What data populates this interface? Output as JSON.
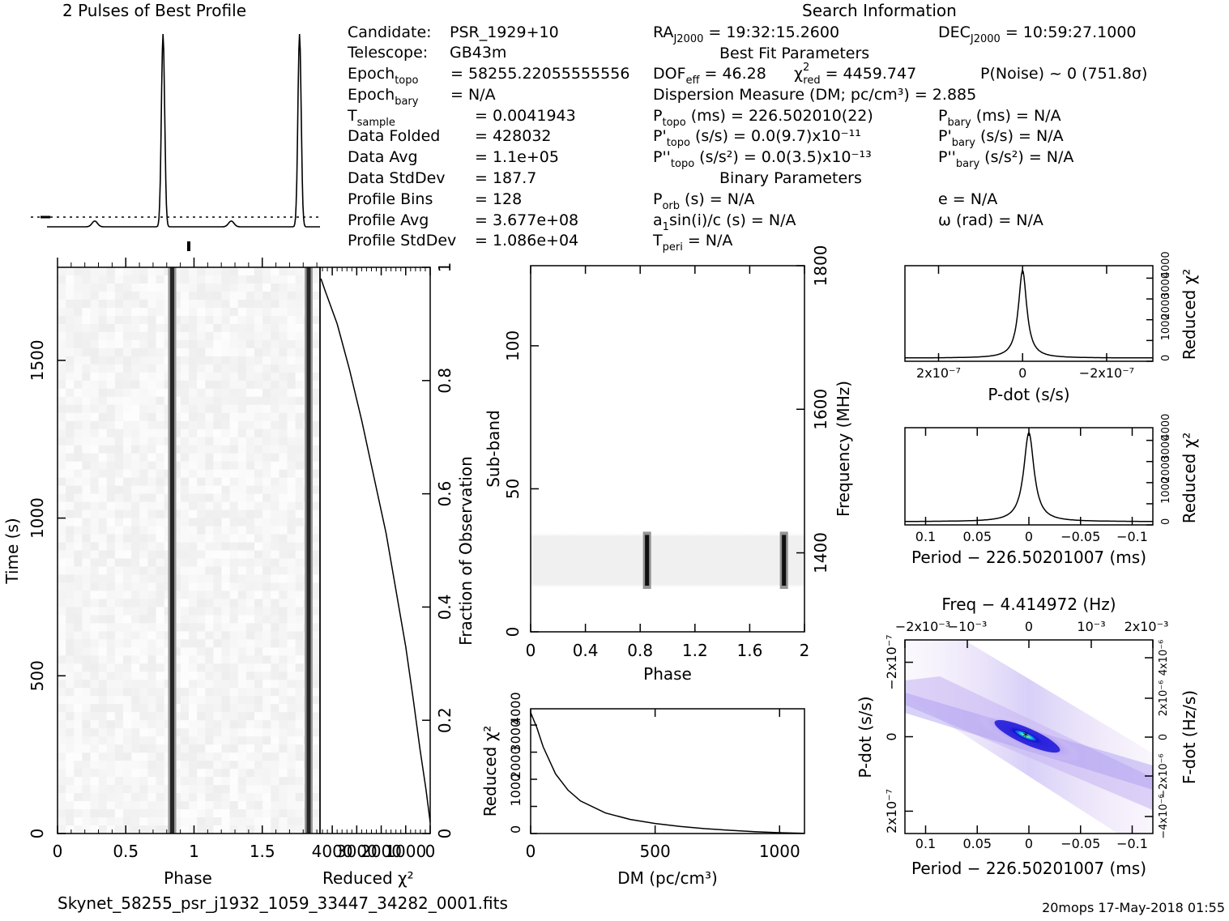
{
  "header": {
    "profile_title": "2 Pulses of Best Profile",
    "search_title": "Search Information",
    "best_fit_title": "Best Fit Parameters",
    "binary_title": "Binary Parameters"
  },
  "info_left": [
    {
      "label": "Candidate:",
      "value": "PSR_1929+10"
    },
    {
      "label": "Telescope:",
      "value": "GB43m"
    },
    {
      "label": "Epoch",
      "sub": "topo",
      "value": "= 58255.22055555556"
    },
    {
      "label": "Epoch",
      "sub": "bary",
      "value": "= N/A"
    },
    {
      "label": "T",
      "sub": "sample",
      "value": "=   0.0041943"
    },
    {
      "label": "Data Folded",
      "value": "=   428032"
    },
    {
      "label": "Data Avg",
      "value": "=   1.1e+05"
    },
    {
      "label": "Data StdDev",
      "value": "=   187.7"
    },
    {
      "label": "Profile Bins",
      "value": "=   128"
    },
    {
      "label": "Profile Avg",
      "value": "=   3.677e+08"
    },
    {
      "label": "Profile StdDev",
      "value": "=   1.086e+04"
    }
  ],
  "search_info": {
    "ra": "RA",
    "ra_sub": "J2000",
    "ra_val": "= 19:32:15.2600",
    "dec": "DEC",
    "dec_sub": "J2000",
    "dec_val": "= 10:59:27.1000",
    "dof": "DOF",
    "dof_sub": "eff",
    "dof_val": "= 46.28",
    "chi": "χ",
    "chi_sup": "2",
    "chi_sub": "red",
    "chi_val": "= 4459.747",
    "pnoise": "P(Noise) ~ 0    (751.8σ)",
    "dm_line": "Dispersion Measure (DM; pc/cm³) = 2.885",
    "ptopo": "P",
    "ptopo_sub": "topo",
    "ptopo_val": "(ms) =  226.502010(22)",
    "pbary": "P",
    "pbary_sub": "bary",
    "pbary_val": "(ms) = N/A",
    "pdtopo": "P'",
    "pdtopo_sub": "topo",
    "pdtopo_val": "(s/s) = 0.0(9.7)x10⁻¹¹",
    "pdbary": "P'",
    "pdbary_sub": "bary",
    "pdbary_val": "(s/s) = N/A",
    "pddtopo": "P''",
    "pddtopo_sub": "topo",
    "pddtopo_val": "(s/s²) = 0.0(3.5)x10⁻¹³",
    "pddbary": "P''",
    "pddbary_sub": "bary",
    "pddbary_val": "(s/s²) = N/A",
    "porb": "P",
    "porb_sub": "orb",
    "porb_val": "(s) = N/A",
    "ecc": "e = N/A",
    "a1": "a",
    "a1_sub": "1",
    "a1_val": "sin(i)/c (s) = N/A",
    "omega": "ω (rad) = N/A",
    "tperi": "T",
    "tperi_sub": "peri",
    "tperi_val": "= N/A"
  },
  "footer": {
    "filename": "Skynet_58255_psr_j1932_1059_33447_34282_0001.fits",
    "stamp": "20mops 17-May-2018 01:55"
  },
  "chart_data": [
    {
      "id": "profile",
      "type": "line",
      "title": "2 Pulses of Best Profile",
      "phase_peaks": [
        0.85,
        1.85
      ],
      "peak_width": 0.012,
      "xlim": [
        0,
        2
      ]
    },
    {
      "id": "time_phase",
      "type": "heatmap",
      "xlabel": "Phase",
      "ylabel": "Time (s)",
      "xlim": [
        0,
        2
      ],
      "ylim": [
        0,
        1795
      ],
      "x_ticks": [
        "0",
        "0.5",
        "1",
        "1.5"
      ],
      "x_tick_values": [
        0,
        0.5,
        1,
        1.5
      ],
      "y_ticks": [
        "0",
        "500",
        "1000",
        "1500"
      ],
      "y_tick_values": [
        0,
        500,
        1000,
        1500
      ],
      "pulse_phases": [
        0.84,
        1.84
      ]
    },
    {
      "id": "reduced_chi_vs_time",
      "type": "line",
      "xlabel": "Reduced χ²",
      "ylabel": "Fraction of Observation",
      "x_ticks": [
        "4000",
        "3000",
        "2000",
        "1000",
        "0"
      ],
      "x_tick_values": [
        4000,
        3000,
        2000,
        1000,
        0
      ],
      "xlim": [
        4500,
        0
      ],
      "ylim": [
        0,
        1
      ],
      "y_ticks": [
        "0",
        "0.2",
        "0.4",
        "0.6",
        "0.8",
        "1"
      ],
      "y_tick_values": [
        0,
        0.2,
        0.4,
        0.6,
        0.8,
        1
      ],
      "x": [
        0,
        180,
        420,
        700,
        1000,
        1400,
        1800,
        2300,
        2800,
        3300,
        3800,
        4300,
        4460
      ],
      "y": [
        0.02,
        0.08,
        0.15,
        0.24,
        0.33,
        0.43,
        0.53,
        0.63,
        0.73,
        0.82,
        0.9,
        0.96,
        0.98
      ]
    },
    {
      "id": "subband_phase",
      "type": "heatmap",
      "xlabel": "Phase",
      "ylabel": "Sub-band",
      "y2label": "Frequency (MHz)",
      "xlim": [
        0,
        2
      ],
      "ylim": [
        0,
        128
      ],
      "x_ticks": [
        "0",
        "0.4",
        "0.8",
        "1.2",
        "1.6",
        "2"
      ],
      "x_tick_values": [
        0,
        0.4,
        0.8,
        1.2,
        1.6,
        2
      ],
      "y_ticks": [
        "0",
        "50",
        "100"
      ],
      "y_tick_values": [
        0,
        50,
        100
      ],
      "y2_ticks": [
        "1400",
        "1600",
        "1800"
      ],
      "y2_tick_values": [
        1400,
        1600,
        1800
      ],
      "y2lim": [
        1290,
        1800
      ],
      "band_range": [
        15,
        35
      ],
      "pulse_phases": [
        0.85,
        1.85
      ]
    },
    {
      "id": "dm_chi",
      "type": "line",
      "xlabel": "DM (pc/cm³)",
      "ylabel": "Reduced χ²",
      "xlim": [
        0,
        1100
      ],
      "x_ticks": [
        "0",
        "500",
        "1000"
      ],
      "x_tick_values": [
        0,
        500,
        1000
      ],
      "y_ticks": [
        "0",
        "1000",
        "2000",
        "3000",
        "4000"
      ],
      "y_tick_values": [
        0,
        1000,
        2000,
        3000,
        4000
      ],
      "ylim": [
        0,
        4600
      ],
      "x": [
        0,
        25,
        50,
        100,
        150,
        200,
        300,
        400,
        500,
        600,
        700,
        800,
        900,
        1000,
        1100
      ],
      "y": [
        4460,
        3900,
        3200,
        2200,
        1600,
        1200,
        760,
        520,
        370,
        260,
        180,
        120,
        70,
        30,
        10
      ]
    },
    {
      "id": "pdot_chi",
      "type": "line",
      "xlabel": "P-dot (s/s)",
      "ylabel": "Reduced χ²",
      "x_ticks": [
        "2x10⁻⁷",
        "0",
        "−2x10⁻⁷"
      ],
      "x_tick_values": [
        2e-07,
        0,
        -2e-07
      ],
      "xlim": [
        2.8e-07,
        -3.1e-07
      ],
      "y_ticks": [
        "0",
        "1000",
        "2000",
        "3000",
        "4000"
      ],
      "y_tick_values": [
        0,
        1000,
        2000,
        3000,
        4000
      ],
      "ylim": [
        0,
        4600
      ]
    },
    {
      "id": "period_chi",
      "type": "line",
      "xlabel": "Period − 226.50201007 (ms)",
      "ylabel": "Reduced χ²",
      "x_ticks": [
        "0.1",
        "0.05",
        "0",
        "−0.05",
        "−0.1"
      ],
      "x_tick_values": [
        0.1,
        0.05,
        0,
        -0.05,
        -0.1
      ],
      "xlim": [
        0.12,
        -0.12
      ],
      "y_ticks": [
        "0",
        "1000",
        "2000",
        "3000",
        "4000"
      ],
      "y_tick_values": [
        0,
        1000,
        2000,
        3000,
        4000
      ],
      "ylim": [
        0,
        4600
      ]
    },
    {
      "id": "period_pdot_map",
      "type": "heatmap",
      "title": "Freq − 4.414972 (Hz)",
      "xlabel": "Period − 226.50201007 (ms)",
      "ylabel": "P-dot (s/s)",
      "y2label": "F-dot (Hz/s)",
      "x_ticks": [
        "0.1",
        "0.05",
        "0",
        "−0.05",
        "−0.1"
      ],
      "x_tick_values": [
        0.1,
        0.05,
        0,
        -0.05,
        -0.1
      ],
      "xlim": [
        0.12,
        -0.12
      ],
      "top_ticks": [
        "−2x10⁻³",
        "−10⁻³",
        "0",
        "10⁻³",
        "2x10⁻³"
      ],
      "y_ticks": [
        "−2x10⁻⁷",
        "0",
        "2x10⁻⁷"
      ],
      "y_tick_values": [
        -2e-07,
        0,
        2e-07
      ],
      "ylim": [
        2.6e-07,
        -2.6e-07
      ],
      "y2_ticks": [
        "4x10⁻⁶",
        "2x10⁻⁶",
        "0",
        "−2x10⁻⁶",
        "−4x10⁻⁶"
      ],
      "colors": {
        "low": "#ffffff",
        "mid": "#e8c8f0",
        "blue": "#1010d0",
        "cyan": "#20e0e0",
        "peak": "#e8f040"
      }
    }
  ]
}
